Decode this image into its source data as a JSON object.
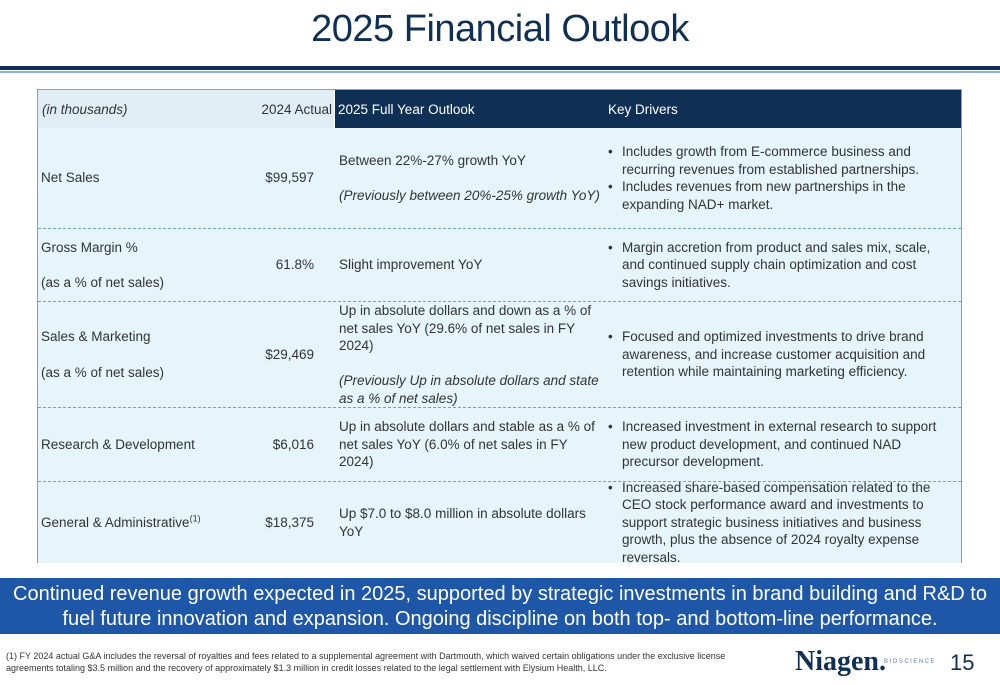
{
  "title": "2025 Financial Outlook",
  "table": {
    "headers": {
      "units": "(in thousands)",
      "actual": "2024 Actual",
      "outlook": "2025 Full Year Outlook",
      "drivers": "Key Drivers"
    },
    "rows": [
      {
        "metric": "Net Sales",
        "actual": "$99,597",
        "outlook_main": "Between 22%-27% growth YoY",
        "outlook_prev": "(Previously between 20%-25% growth YoY)",
        "drivers": [
          "Includes growth from E-commerce business and recurring revenues from established partnerships.",
          "Includes revenues from new partnerships in the expanding NAD+ market."
        ]
      },
      {
        "metric": "Gross Margin %",
        "metric_sub": "(as a % of net sales)",
        "actual": "61.8%",
        "outlook_main": "Slight improvement YoY",
        "drivers": [
          "Margin accretion from product and sales mix, scale, and continued supply chain optimization and cost savings initiatives."
        ]
      },
      {
        "metric": "Sales & Marketing",
        "metric_sub": "(as a % of net sales)",
        "actual": "$29,469",
        "outlook_main": "Up in absolute dollars and down as a % of net sales YoY (29.6% of net sales in FY 2024)",
        "outlook_prev": "(Previously Up in absolute dollars and state as a % of net sales)",
        "drivers": [
          "Focused and optimized investments to drive brand awareness, and increase customer acquisition and retention while maintaining marketing efficiency."
        ]
      },
      {
        "metric": "Research & Development",
        "actual": "$6,016",
        "outlook_main": "Up in absolute dollars and stable as a % of net sales YoY (6.0% of net sales in FY 2024)",
        "drivers": [
          "Increased investment in external research to support new product development, and continued NAD precursor development."
        ]
      },
      {
        "metric": "General & Administrative",
        "metric_sup": "(1)",
        "actual": "$18,375",
        "outlook_main": "Up $7.0 to $8.0 million in absolute dollars YoY",
        "drivers": [
          "Increased share-based compensation related to the CEO stock performance award and investments to support strategic business initiatives and business growth, plus the absence of 2024 royalty expense reversals."
        ]
      }
    ]
  },
  "banner": "Continued revenue growth expected in 2025, supported by strategic investments in brand building and R&D to fuel future innovation and expansion. Ongoing discipline on both top- and bottom-line performance.",
  "footnote": "(1) FY 2024 actual G&A includes the reversal of royalties and fees related to a supplemental agreement with Dartmouth, which waived certain obligations under the exclusive license agreements totaling $3.5 million and the recovery of approximately $1.3 million in credit losses related to the legal settlement with Elysium Health, LLC.",
  "logo": {
    "name": "Niagen.",
    "sub": "BIOSCIENCE"
  },
  "page_number": "15",
  "colors": {
    "navy": "#0f2f55",
    "banner_blue": "#1f57a8",
    "row_bg": "#e5f5fa",
    "header_light": "#e1edf4"
  }
}
